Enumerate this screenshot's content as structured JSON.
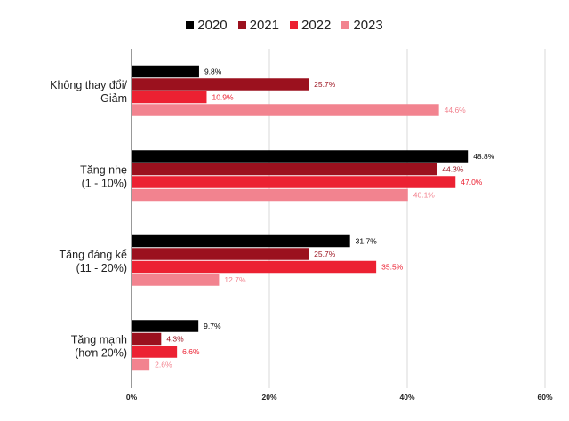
{
  "chart_data": {
    "type": "bar",
    "orientation": "horizontal",
    "categories": [
      [
        "Không thay đổi/",
        "Giảm"
      ],
      [
        "Tăng nhẹ",
        "(1 - 10%)"
      ],
      [
        "Tăng đáng kể",
        "(11 - 20%)"
      ],
      [
        "Tăng mạnh",
        "(hơn 20%)"
      ]
    ],
    "series": [
      {
        "name": "2020",
        "color": "#000000",
        "label_color": "#000000",
        "values": [
          9.8,
          48.8,
          31.7,
          9.7
        ]
      },
      {
        "name": "2021",
        "color": "#9b111e",
        "label_color": "#9b111e",
        "values": [
          25.7,
          44.3,
          25.7,
          4.3
        ]
      },
      {
        "name": "2022",
        "color": "#ec2132",
        "label_color": "#ec2132",
        "values": [
          10.9,
          47.0,
          35.5,
          6.6
        ]
      },
      {
        "name": "2023",
        "color": "#f2838f",
        "label_color": "#f2838f",
        "values": [
          44.6,
          40.1,
          12.7,
          2.6
        ]
      }
    ],
    "xlim": [
      0,
      60
    ],
    "xticks": [
      0,
      20,
      40,
      60
    ],
    "tick_suffix": "%",
    "grid": true,
    "legend_position": "top"
  }
}
